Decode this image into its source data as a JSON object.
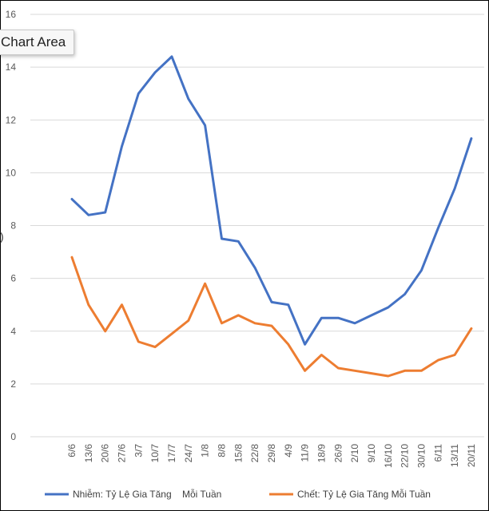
{
  "chart_data": {
    "type": "line",
    "categories": [
      "6/6",
      "13/6",
      "20/6",
      "27/6",
      "3/7",
      "10/7",
      "17/7",
      "24/7",
      "1/8",
      "8/8",
      "15/8",
      "22/8",
      "29/8",
      "4/9",
      "11/9",
      "18/9",
      "26/9",
      "2/10",
      "9/10",
      "16/10",
      "22/10",
      "30/10",
      "6/11",
      "13/11",
      "20/11"
    ],
    "series": [
      {
        "name": "Nhiễm: Tỷ Lệ Gia Tăng    Mỗi Tuần",
        "color": "#4472C4",
        "values": [
          9.0,
          8.4,
          8.5,
          11.0,
          13.0,
          13.8,
          14.4,
          12.8,
          11.8,
          7.5,
          7.4,
          6.4,
          5.1,
          5.0,
          3.5,
          4.5,
          4.5,
          4.3,
          4.6,
          4.9,
          5.4,
          6.3,
          7.9,
          9.4,
          11.3
        ]
      },
      {
        "name": "Chết: Tỷ Lệ Gia Tăng Mỗi Tuần",
        "color": "#ED7D31",
        "values": [
          6.8,
          5.0,
          4.0,
          5.0,
          3.6,
          3.4,
          3.9,
          4.4,
          5.8,
          4.3,
          4.6,
          4.3,
          4.2,
          3.5,
          2.5,
          3.1,
          2.6,
          2.5,
          2.4,
          2.3,
          2.5,
          2.5,
          2.9,
          3.1,
          4.1
        ]
      }
    ],
    "y_ticks": [
      "0",
      "2",
      "4",
      "6",
      "8",
      "10",
      "12",
      "14",
      "16"
    ],
    "ylim": [
      0,
      16
    ],
    "grid": true,
    "legend_position": "bottom"
  },
  "tooltip": "Chart Area",
  "axis_mark": ")"
}
